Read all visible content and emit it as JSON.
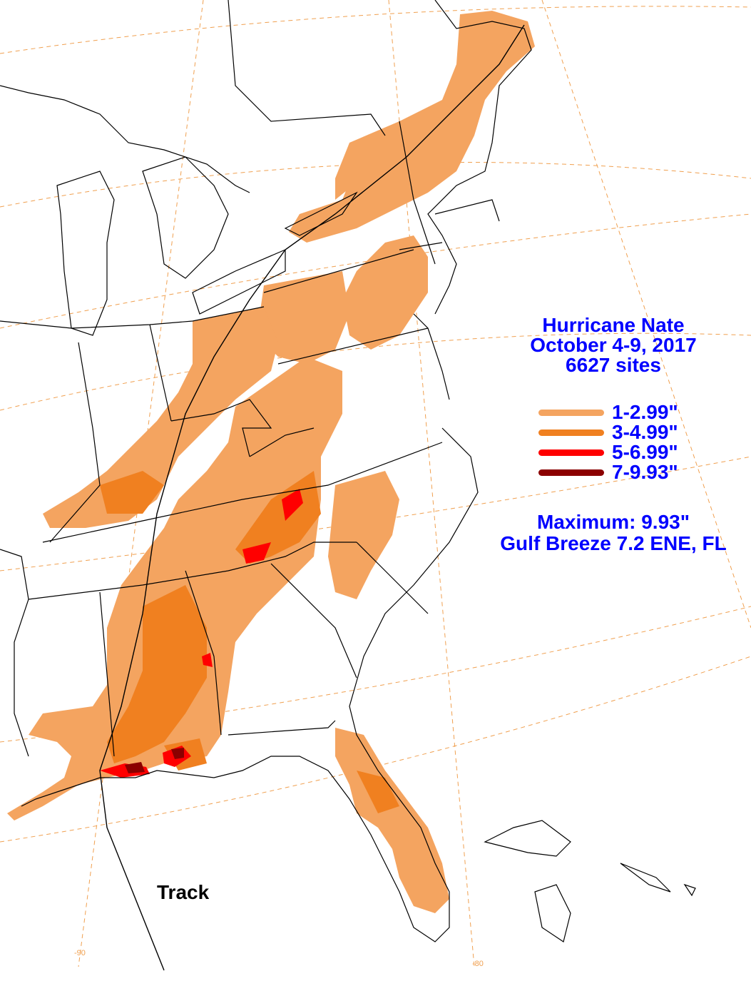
{
  "title": {
    "line1": "Hurricane Nate",
    "line2": "October 4-9, 2017",
    "line3": "6627 sites"
  },
  "legend": [
    {
      "label": "1-2.99\"",
      "color": "#f4a460"
    },
    {
      "label": "3-4.99\"",
      "color": "#f08020"
    },
    {
      "label": "5-6.99\"",
      "color": "#ff0000"
    },
    {
      "label": "7-9.93\"",
      "color": "#8b0000"
    }
  ],
  "maximum": {
    "label": "Maximum: 9.93\"",
    "location": "Gulf Breeze 7.2 ENE, FL"
  },
  "track_label": "Track",
  "longitude_labels": [
    "-90",
    "-80"
  ],
  "colors": {
    "text": "#0000ff",
    "graticule": "#f0a050",
    "boundaries": "#000000"
  }
}
